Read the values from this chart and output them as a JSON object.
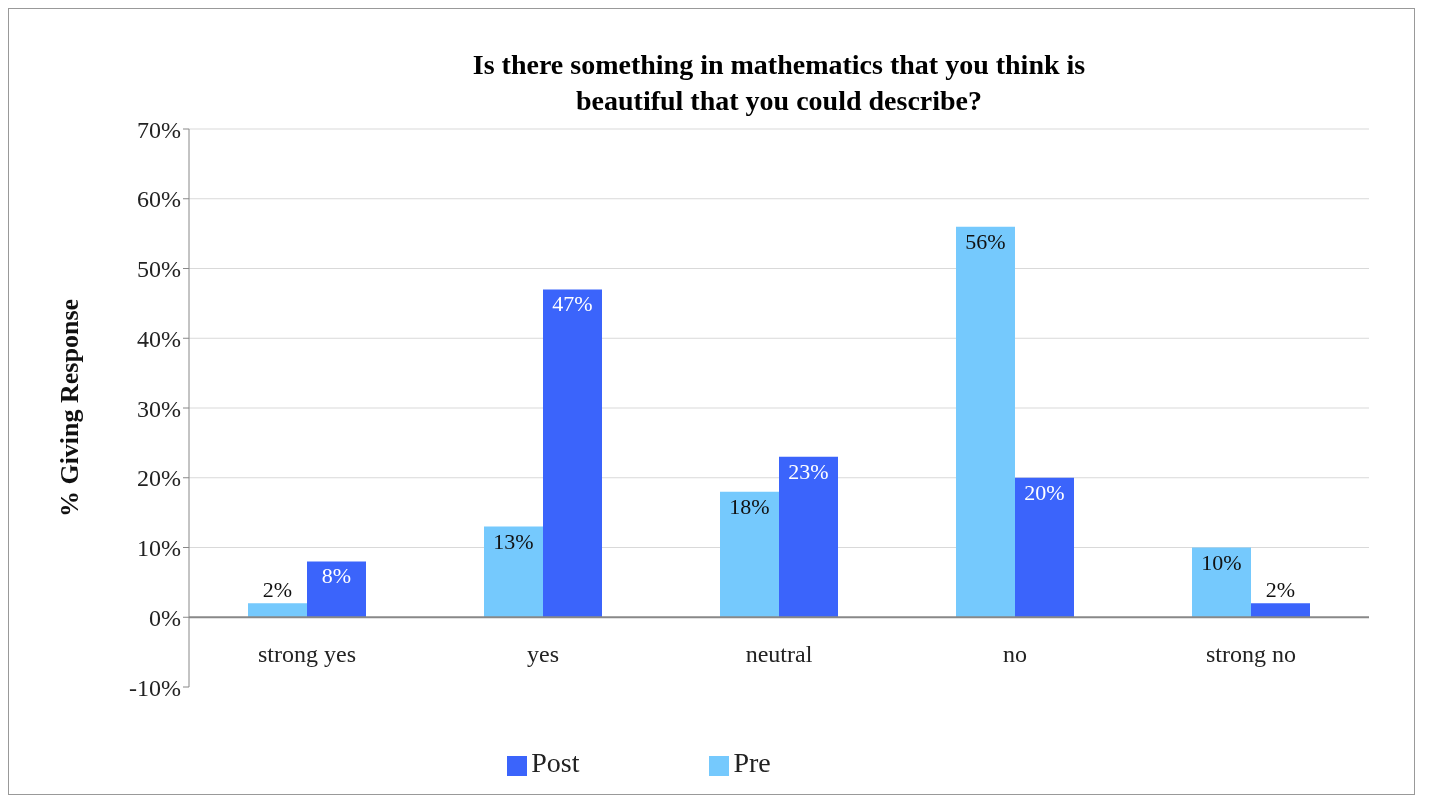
{
  "chart_data": {
    "type": "bar",
    "title": "Is there something in mathematics that you think is beautiful that you could describe?",
    "ylabel": "% Giving Response",
    "categories": [
      "strong yes",
      "yes",
      "neutral",
      "no",
      "strong no"
    ],
    "series": [
      {
        "name": "Pre",
        "color": "#75c9fd",
        "values": [
          2,
          13,
          18,
          56,
          10
        ],
        "value_labels": [
          "2%",
          "13%",
          "18%",
          "56%",
          "10%"
        ]
      },
      {
        "name": "Post",
        "color": "#3b64fb",
        "values": [
          8,
          47,
          23,
          20,
          2
        ],
        "value_labels": [
          "8%",
          "47%",
          "23%",
          "20%",
          "2%"
        ]
      }
    ],
    "ylim": [
      -10,
      70
    ],
    "yticks": [
      {
        "value": -10,
        "label": "-10%"
      },
      {
        "value": 0,
        "label": "0%"
      },
      {
        "value": 10,
        "label": "10%"
      },
      {
        "value": 20,
        "label": "20%"
      },
      {
        "value": 30,
        "label": "30%"
      },
      {
        "value": 40,
        "label": "40%"
      },
      {
        "value": 50,
        "label": "50%"
      },
      {
        "value": 60,
        "label": "60%"
      },
      {
        "value": 70,
        "label": "70%"
      }
    ],
    "grid": "y",
    "legend": "bottom"
  }
}
